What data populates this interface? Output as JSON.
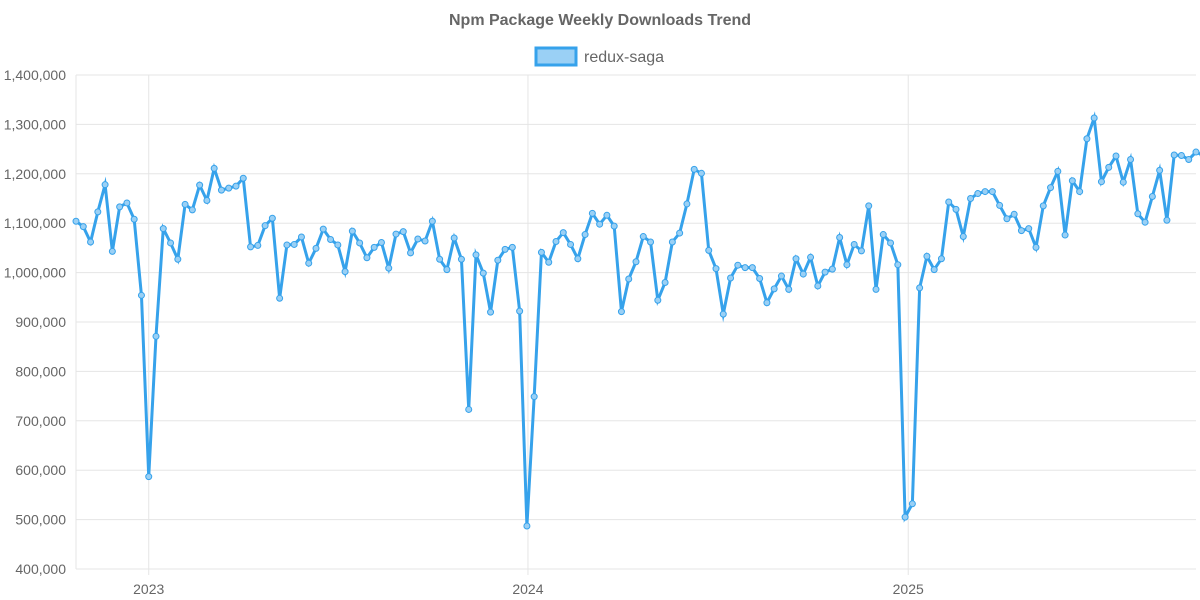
{
  "chart_data": {
    "type": "line",
    "title": "Npm Package Weekly Downloads Trend",
    "xlabel": "",
    "ylabel": "",
    "legend_position": "top-center",
    "grid": true,
    "ylim": [
      400000,
      1400000
    ],
    "y_ticks": [
      {
        "value": 400000,
        "label": "400,000"
      },
      {
        "value": 500000,
        "label": "500,000"
      },
      {
        "value": 600000,
        "label": "600,000"
      },
      {
        "value": 700000,
        "label": "700,000"
      },
      {
        "value": 800000,
        "label": "800,000"
      },
      {
        "value": 900000,
        "label": "900,000"
      },
      {
        "value": 1000000,
        "label": "1,000,000"
      },
      {
        "value": 1100000,
        "label": "1,100,000"
      },
      {
        "value": 1200000,
        "label": "1,200,000"
      },
      {
        "value": 1300000,
        "label": "1,300,000"
      },
      {
        "value": 1400000,
        "label": "1,400,000"
      }
    ],
    "x_ticks": [
      {
        "date": "2023-01-01",
        "label": "2023"
      },
      {
        "date": "2024-01-01",
        "label": "2024"
      },
      {
        "date": "2025-01-01",
        "label": "2025"
      }
    ],
    "xlim": [
      "2022-10-23",
      "2025-10-05"
    ],
    "series": [
      {
        "name": "redux-saga",
        "color": "#36a2eb",
        "fill": "#9ad0f5",
        "first_week": "2022-10-23",
        "values": [
          1104000,
          1093000,
          1062000,
          1123000,
          1178000,
          1043000,
          1133000,
          1141000,
          1108000,
          954000,
          587000,
          871000,
          1089000,
          1060000,
          1027000,
          1138000,
          1127000,
          1177000,
          1146000,
          1211000,
          1167000,
          1171000,
          1175000,
          1191000,
          1052000,
          1055000,
          1095000,
          1110000,
          948000,
          1056000,
          1057000,
          1072000,
          1019000,
          1049000,
          1088000,
          1067000,
          1056000,
          1002000,
          1084000,
          1060000,
          1030000,
          1051000,
          1061000,
          1009000,
          1078000,
          1083000,
          1040000,
          1068000,
          1064000,
          1104000,
          1027000,
          1006000,
          1070000,
          1027000,
          723000,
          1036000,
          999000,
          920000,
          1025000,
          1047000,
          1051000,
          922000,
          487000,
          749000,
          1041000,
          1021000,
          1063000,
          1081000,
          1057000,
          1028000,
          1077000,
          1120000,
          1098000,
          1116000,
          1094000,
          921000,
          987000,
          1022000,
          1073000,
          1062000,
          944000,
          980000,
          1062000,
          1080000,
          1139000,
          1209000,
          1201000,
          1045000,
          1008000,
          916000,
          989000,
          1015000,
          1010000,
          1010000,
          988000,
          939000,
          967000,
          993000,
          966000,
          1028000,
          997000,
          1031000,
          973000,
          1001000,
          1007000,
          1071000,
          1016000,
          1057000,
          1044000,
          1135000,
          966000,
          1077000,
          1060000,
          1016000,
          505000,
          532000,
          969000,
          1033000,
          1006000,
          1028000,
          1143000,
          1128000,
          1073000,
          1150000,
          1160000,
          1164000,
          1164000,
          1136000,
          1109000,
          1118000,
          1085000,
          1089000,
          1051000,
          1135000,
          1172000,
          1205000,
          1076000,
          1186000,
          1164000,
          1271000,
          1313000,
          1184000,
          1213000,
          1236000,
          1183000,
          1229000,
          1119000,
          1102000,
          1154000,
          1207000,
          1106000,
          1238000,
          1237000,
          1229000,
          1244000,
          1237000
        ]
      }
    ]
  }
}
